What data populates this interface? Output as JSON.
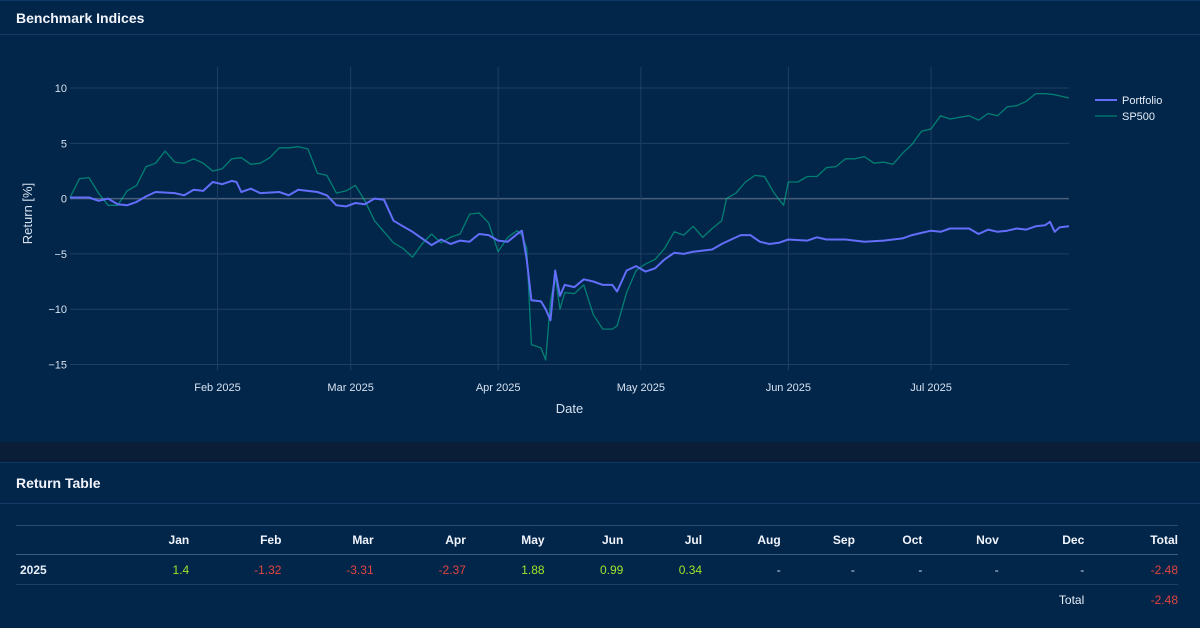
{
  "chart_card": {
    "title": "Benchmark Indices"
  },
  "table_card": {
    "title": "Return Table"
  },
  "chart_data": {
    "type": "line",
    "xlabel": "Date",
    "ylabel": "Return [%]",
    "ylim": [
      -15.5,
      11
    ],
    "yticks": [
      10,
      5,
      0,
      -5,
      -10,
      -15
    ],
    "ytick_labels": [
      "10",
      "5",
      "0",
      "−5",
      "−10",
      "−15"
    ],
    "xlim": [
      0,
      210
    ],
    "xticks": [
      {
        "label": "Feb 2025",
        "x": 31
      },
      {
        "label": "Mar 2025",
        "x": 59
      },
      {
        "label": "Apr 2025",
        "x": 90
      },
      {
        "label": "May 2025",
        "x": 120
      },
      {
        "label": "Jun 2025",
        "x": 151
      },
      {
        "label": "Jul 2025",
        "x": 181
      }
    ],
    "series": [
      {
        "name": "Portfolio",
        "color": "#636efa",
        "points": [
          [
            0,
            0.1
          ],
          [
            4,
            0.1
          ],
          [
            6,
            -0.2
          ],
          [
            8,
            0
          ],
          [
            10,
            -0.5
          ],
          [
            12,
            -0.6
          ],
          [
            14,
            -0.3
          ],
          [
            16,
            0.2
          ],
          [
            18,
            0.6
          ],
          [
            22,
            0.5
          ],
          [
            24,
            0.3
          ],
          [
            26,
            0.8
          ],
          [
            28,
            0.7
          ],
          [
            30,
            1.5
          ],
          [
            32,
            1.3
          ],
          [
            34,
            1.6
          ],
          [
            35,
            1.5
          ],
          [
            36,
            0.6
          ],
          [
            38,
            0.9
          ],
          [
            40,
            0.5
          ],
          [
            44,
            0.6
          ],
          [
            46,
            0.3
          ],
          [
            48,
            0.8
          ],
          [
            52,
            0.6
          ],
          [
            54,
            0.3
          ],
          [
            56,
            -0.6
          ],
          [
            58,
            -0.7
          ],
          [
            60,
            -0.4
          ],
          [
            62,
            -0.5
          ],
          [
            64,
            0
          ],
          [
            66,
            -0.1
          ],
          [
            68,
            -2
          ],
          [
            70,
            -2.5
          ],
          [
            72,
            -3
          ],
          [
            74,
            -3.6
          ],
          [
            76,
            -4.2
          ],
          [
            78,
            -3.7
          ],
          [
            80,
            -4.1
          ],
          [
            82,
            -3.8
          ],
          [
            84,
            -3.9
          ],
          [
            86,
            -3.2
          ],
          [
            88,
            -3.3
          ],
          [
            90,
            -3.8
          ],
          [
            92,
            -3.9
          ],
          [
            94,
            -3.2
          ],
          [
            95,
            -2.9
          ],
          [
            96,
            -5.5
          ],
          [
            97,
            -9.2
          ],
          [
            99,
            -9.3
          ],
          [
            100,
            -10
          ],
          [
            101,
            -11
          ],
          [
            102,
            -6.5
          ],
          [
            103,
            -8.8
          ],
          [
            104,
            -7.8
          ],
          [
            106,
            -8
          ],
          [
            108,
            -7.3
          ],
          [
            110,
            -7.5
          ],
          [
            112,
            -7.8
          ],
          [
            114,
            -7.8
          ],
          [
            115,
            -8.4
          ],
          [
            117,
            -6.5
          ],
          [
            119,
            -6.1
          ],
          [
            121,
            -6.6
          ],
          [
            123,
            -6.3
          ],
          [
            125,
            -5.5
          ],
          [
            127,
            -4.9
          ],
          [
            129,
            -5
          ],
          [
            131,
            -4.8
          ],
          [
            133,
            -4.7
          ],
          [
            135,
            -4.6
          ],
          [
            137,
            -4.1
          ],
          [
            139,
            -3.7
          ],
          [
            141,
            -3.3
          ],
          [
            143,
            -3.3
          ],
          [
            145,
            -3.9
          ],
          [
            147,
            -4.1
          ],
          [
            149,
            -4
          ],
          [
            151,
            -3.7
          ],
          [
            155,
            -3.8
          ],
          [
            157,
            -3.5
          ],
          [
            159,
            -3.7
          ],
          [
            163,
            -3.7
          ],
          [
            167,
            -3.9
          ],
          [
            171,
            -3.8
          ],
          [
            175,
            -3.6
          ],
          [
            177,
            -3.3
          ],
          [
            179,
            -3.1
          ],
          [
            181,
            -2.9
          ],
          [
            183,
            -3
          ],
          [
            185,
            -2.7
          ],
          [
            189,
            -2.7
          ],
          [
            191,
            -3.2
          ],
          [
            193,
            -2.8
          ],
          [
            195,
            -3
          ],
          [
            197,
            -2.9
          ],
          [
            199,
            -2.7
          ],
          [
            201,
            -2.8
          ],
          [
            203,
            -2.5
          ],
          [
            205,
            -2.4
          ],
          [
            206,
            -2.1
          ],
          [
            207,
            -3
          ],
          [
            208,
            -2.6
          ],
          [
            210,
            -2.5
          ]
        ]
      },
      {
        "name": "SP500",
        "color": "#00cc96",
        "points": [
          [
            0,
            0.1
          ],
          [
            2,
            1.8
          ],
          [
            4,
            1.9
          ],
          [
            6,
            0.5
          ],
          [
            8,
            -0.6
          ],
          [
            10,
            -0.6
          ],
          [
            12,
            0.7
          ],
          [
            14,
            1.2
          ],
          [
            16,
            2.9
          ],
          [
            18,
            3.2
          ],
          [
            20,
            4.3
          ],
          [
            22,
            3.3
          ],
          [
            24,
            3.2
          ],
          [
            26,
            3.6
          ],
          [
            28,
            3.2
          ],
          [
            30,
            2.5
          ],
          [
            32,
            2.7
          ],
          [
            34,
            3.6
          ],
          [
            36,
            3.7
          ],
          [
            38,
            3.1
          ],
          [
            40,
            3.2
          ],
          [
            42,
            3.7
          ],
          [
            44,
            4.6
          ],
          [
            46,
            4.6
          ],
          [
            48,
            4.7
          ],
          [
            50,
            4.5
          ],
          [
            52,
            2.3
          ],
          [
            54,
            2.1
          ],
          [
            56,
            0.5
          ],
          [
            58,
            0.7
          ],
          [
            60,
            1.2
          ],
          [
            62,
            -0.2
          ],
          [
            64,
            -2
          ],
          [
            66,
            -3
          ],
          [
            68,
            -4
          ],
          [
            70,
            -4.5
          ],
          [
            72,
            -5.3
          ],
          [
            74,
            -4.1
          ],
          [
            76,
            -3.2
          ],
          [
            78,
            -4
          ],
          [
            80,
            -3.5
          ],
          [
            82,
            -3.2
          ],
          [
            84,
            -1.4
          ],
          [
            86,
            -1.3
          ],
          [
            88,
            -2.2
          ],
          [
            90,
            -4.8
          ],
          [
            92,
            -3.5
          ],
          [
            94,
            -2.9
          ],
          [
            95,
            -3.3
          ],
          [
            96,
            -4.5
          ],
          [
            97,
            -13.2
          ],
          [
            99,
            -13.5
          ],
          [
            100,
            -14.6
          ],
          [
            101,
            -9.3
          ],
          [
            102,
            -7
          ],
          [
            103,
            -10
          ],
          [
            104,
            -8.5
          ],
          [
            106,
            -8.6
          ],
          [
            108,
            -7.8
          ],
          [
            110,
            -10.5
          ],
          [
            112,
            -11.8
          ],
          [
            114,
            -11.8
          ],
          [
            115,
            -11.5
          ],
          [
            117,
            -8.5
          ],
          [
            119,
            -6.5
          ],
          [
            121,
            -5.9
          ],
          [
            123,
            -5.5
          ],
          [
            125,
            -4.5
          ],
          [
            127,
            -3
          ],
          [
            129,
            -3.3
          ],
          [
            131,
            -2.5
          ],
          [
            133,
            -3.5
          ],
          [
            135,
            -2.7
          ],
          [
            137,
            -2
          ],
          [
            138,
            0
          ],
          [
            140,
            0.5
          ],
          [
            142,
            1.5
          ],
          [
            144,
            2.1
          ],
          [
            146,
            2
          ],
          [
            148,
            0.5
          ],
          [
            150,
            -0.6
          ],
          [
            151,
            1.5
          ],
          [
            153,
            1.5
          ],
          [
            155,
            2
          ],
          [
            157,
            2
          ],
          [
            159,
            2.8
          ],
          [
            161,
            2.9
          ],
          [
            163,
            3.6
          ],
          [
            165,
            3.6
          ],
          [
            167,
            3.8
          ],
          [
            169,
            3.2
          ],
          [
            171,
            3.3
          ],
          [
            173,
            3.1
          ],
          [
            175,
            4.1
          ],
          [
            177,
            4.9
          ],
          [
            179,
            6.1
          ],
          [
            181,
            6.3
          ],
          [
            183,
            7.5
          ],
          [
            185,
            7.2
          ],
          [
            189,
            7.5
          ],
          [
            191,
            7.1
          ],
          [
            193,
            7.7
          ],
          [
            195,
            7.5
          ],
          [
            197,
            8.3
          ],
          [
            199,
            8.4
          ],
          [
            201,
            8.8
          ],
          [
            203,
            9.5
          ],
          [
            205,
            9.5
          ],
          [
            207,
            9.4
          ],
          [
            210,
            9.1
          ]
        ]
      }
    ]
  },
  "return_table": {
    "headers": [
      "",
      "Jan",
      "Feb",
      "Mar",
      "Apr",
      "May",
      "Jun",
      "Jul",
      "Aug",
      "Sep",
      "Oct",
      "Nov",
      "Dec",
      "Total"
    ],
    "rows": [
      {
        "label": "2025",
        "cells": [
          "1.4",
          "-1.32",
          "-3.31",
          "-2.37",
          "1.88",
          "0.99",
          "0.34",
          "-",
          "-",
          "-",
          "-",
          "-",
          "-2.48"
        ]
      }
    ],
    "total_row": {
      "label": "Total",
      "value": "-2.48"
    }
  },
  "colors": {
    "positive": "#9be52a",
    "negative": "#e0453f",
    "neutral": "#d6e2f0"
  }
}
